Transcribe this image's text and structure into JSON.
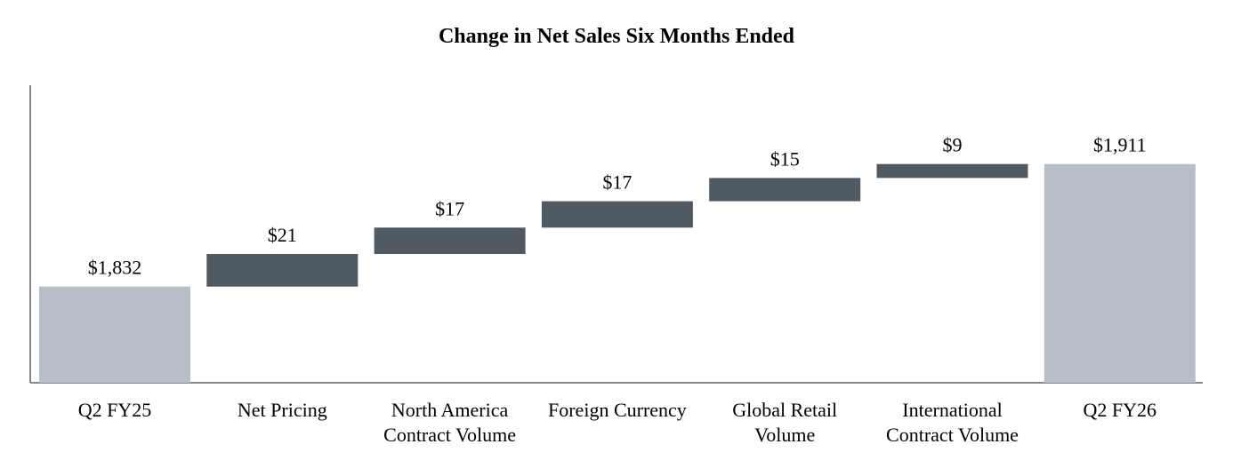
{
  "chart_data": {
    "type": "waterfall",
    "title": "Change in Net Sales Six Months Ended",
    "categories": [
      [
        "Q2 FY25"
      ],
      [
        "Net Pricing"
      ],
      [
        "North America",
        "Contract Volume"
      ],
      [
        "Foreign Currency"
      ],
      [
        "Global Retail",
        "Volume"
      ],
      [
        "International",
        "Contract Volume"
      ],
      [
        "Q2 FY26"
      ]
    ],
    "bars": [
      {
        "kind": "total",
        "start": 0,
        "end": 1832,
        "label": "$1,832"
      },
      {
        "kind": "delta",
        "start": 1832,
        "end": 1853,
        "label": "$21"
      },
      {
        "kind": "delta",
        "start": 1853,
        "end": 1870,
        "label": "$17"
      },
      {
        "kind": "delta",
        "start": 1870,
        "end": 1887,
        "label": "$17"
      },
      {
        "kind": "delta",
        "start": 1887,
        "end": 1902,
        "label": "$15"
      },
      {
        "kind": "delta",
        "start": 1902,
        "end": 1911,
        "label": "$9"
      },
      {
        "kind": "total",
        "start": 0,
        "end": 1911,
        "label": "$1,911"
      }
    ],
    "colors": {
      "total": "#b6bfc8",
      "delta": "#505a63",
      "axis": "#888888"
    },
    "grid": false,
    "legend": "none"
  }
}
